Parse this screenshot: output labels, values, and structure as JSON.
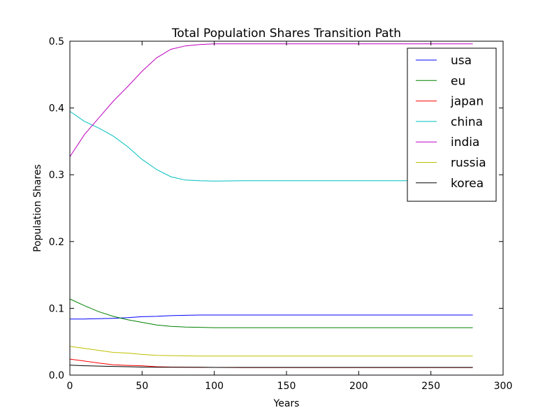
{
  "chart_data": {
    "type": "line",
    "title": "Total Population Shares Transition Path",
    "xlabel": "Years",
    "ylabel": "Population Shares",
    "xlim": [
      0,
      300
    ],
    "ylim": [
      0,
      0.5
    ],
    "xticks": [
      0,
      50,
      100,
      150,
      200,
      250,
      300
    ],
    "yticks": [
      0.0,
      0.1,
      0.2,
      0.3,
      0.4,
      0.5
    ],
    "xtick_labels": [
      "0",
      "50",
      "100",
      "150",
      "200",
      "250",
      "300"
    ],
    "ytick_labels": [
      "0.0",
      "0.1",
      "0.2",
      "0.3",
      "0.4",
      "0.5"
    ],
    "grid": false,
    "legend_position": "top-right",
    "x": [
      0,
      10,
      20,
      30,
      40,
      50,
      60,
      70,
      80,
      90,
      100,
      120,
      150,
      200,
      250,
      279
    ],
    "series": [
      {
        "name": "usa",
        "color": "#0000ff",
        "values": [
          0.084,
          0.084,
          0.0845,
          0.085,
          0.086,
          0.0875,
          0.088,
          0.089,
          0.0895,
          0.09,
          0.09,
          0.09,
          0.09,
          0.09,
          0.09,
          0.09
        ]
      },
      {
        "name": "eu",
        "color": "#008000",
        "values": [
          0.114,
          0.104,
          0.095,
          0.088,
          0.083,
          0.079,
          0.075,
          0.073,
          0.072,
          0.0715,
          0.071,
          0.071,
          0.071,
          0.071,
          0.071,
          0.071
        ]
      },
      {
        "name": "japan",
        "color": "#ff0000",
        "values": [
          0.024,
          0.021,
          0.018,
          0.0155,
          0.0145,
          0.014,
          0.0125,
          0.012,
          0.0118,
          0.0115,
          0.0115,
          0.0113,
          0.0113,
          0.0113,
          0.0113,
          0.0113
        ]
      },
      {
        "name": "china",
        "color": "#00bfbf",
        "values": [
          0.395,
          0.38,
          0.37,
          0.358,
          0.342,
          0.323,
          0.308,
          0.297,
          0.292,
          0.291,
          0.2905,
          0.291,
          0.291,
          0.291,
          0.291,
          0.291
        ]
      },
      {
        "name": "india",
        "color": "#bf00bf",
        "values": [
          0.327,
          0.36,
          0.385,
          0.41,
          0.432,
          0.455,
          0.475,
          0.488,
          0.493,
          0.495,
          0.496,
          0.496,
          0.496,
          0.496,
          0.496,
          0.496
        ]
      },
      {
        "name": "russia",
        "color": "#bfbf00",
        "values": [
          0.043,
          0.04,
          0.037,
          0.034,
          0.033,
          0.031,
          0.0295,
          0.0292,
          0.0288,
          0.0285,
          0.0285,
          0.0285,
          0.0285,
          0.0285,
          0.0285,
          0.0285
        ]
      },
      {
        "name": "korea",
        "color": "#000000",
        "values": [
          0.015,
          0.014,
          0.0135,
          0.013,
          0.0125,
          0.012,
          0.0118,
          0.0118,
          0.0118,
          0.0118,
          0.0115,
          0.0115,
          0.0115,
          0.0115,
          0.0115,
          0.0115
        ]
      }
    ]
  }
}
